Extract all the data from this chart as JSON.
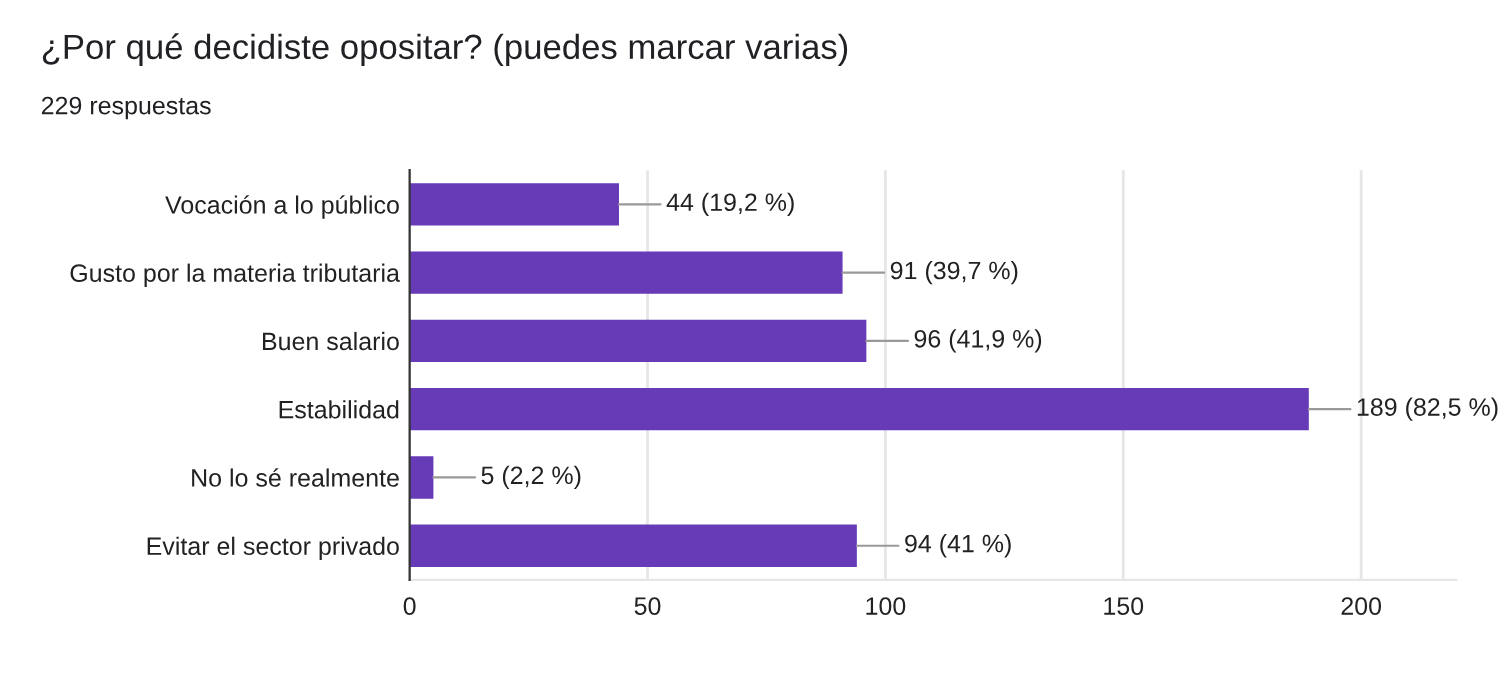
{
  "chart_data": {
    "type": "bar",
    "orientation": "horizontal",
    "title": "¿Por qué decidiste opositar? (puedes marcar varias)",
    "subtitle": "229 respuestas",
    "categories": [
      "Vocación a lo público",
      "Gusto por la materia tributaria",
      "Buen salario",
      "Estabilidad",
      "No lo sé realmente",
      "Evitar el sector privado"
    ],
    "values": [
      44,
      91,
      96,
      189,
      5,
      94
    ],
    "value_labels": [
      "44 (19,2 %)",
      "91 (39,7 %)",
      "96 (41,9 %)",
      "189 (82,5 %)",
      "5 (2,2 %)",
      "94 (41 %)"
    ],
    "color": "#673ab7",
    "xlim": [
      0,
      220
    ],
    "xticks": [
      0,
      50,
      100,
      150,
      200
    ],
    "grid": "x"
  }
}
